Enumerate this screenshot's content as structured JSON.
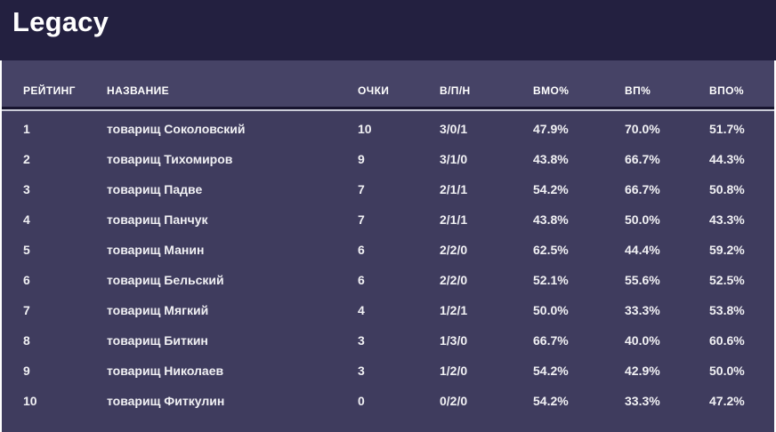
{
  "page": {
    "title": "Legacy"
  },
  "colors": {
    "title_band_bg": "#232040",
    "header_band_bg": "#464366",
    "body_bg": "#3f3c5e",
    "header_border_dark": "#17142f",
    "divider_light": "#cbccd8",
    "text": "#f1f1f4",
    "page_bg": "#ffffff"
  },
  "table": {
    "columns": [
      {
        "key": "rating",
        "label": "РЕЙТИНГ"
      },
      {
        "key": "name",
        "label": "НАЗВАНИЕ"
      },
      {
        "key": "points",
        "label": "ОЧКИ"
      },
      {
        "key": "wld",
        "label": "В/П/Н"
      },
      {
        "key": "omw_pct",
        "label": "ВМО%"
      },
      {
        "key": "gw_pct",
        "label": "ВП%"
      },
      {
        "key": "ogw_pct",
        "label": "ВПО%"
      }
    ],
    "rows": [
      {
        "rating": "1",
        "name": "товарищ Соколовский",
        "points": "10",
        "wld": "3/0/1",
        "omw_pct": "47.9%",
        "gw_pct": "70.0%",
        "ogw_pct": "51.7%"
      },
      {
        "rating": "2",
        "name": "товарищ Тихомиров",
        "points": "9",
        "wld": "3/1/0",
        "omw_pct": "43.8%",
        "gw_pct": "66.7%",
        "ogw_pct": "44.3%"
      },
      {
        "rating": "3",
        "name": "товарищ Падве",
        "points": "7",
        "wld": "2/1/1",
        "omw_pct": "54.2%",
        "gw_pct": "66.7%",
        "ogw_pct": "50.8%"
      },
      {
        "rating": "4",
        "name": "товарищ Панчук",
        "points": "7",
        "wld": "2/1/1",
        "omw_pct": "43.8%",
        "gw_pct": "50.0%",
        "ogw_pct": "43.3%"
      },
      {
        "rating": "5",
        "name": "товарищ Манин",
        "points": "6",
        "wld": "2/2/0",
        "omw_pct": "62.5%",
        "gw_pct": "44.4%",
        "ogw_pct": "59.2%"
      },
      {
        "rating": "6",
        "name": "товарищ Бельский",
        "points": "6",
        "wld": "2/2/0",
        "omw_pct": "52.1%",
        "gw_pct": "55.6%",
        "ogw_pct": "52.5%"
      },
      {
        "rating": "7",
        "name": "товарищ Мягкий",
        "points": "4",
        "wld": "1/2/1",
        "omw_pct": "50.0%",
        "gw_pct": "33.3%",
        "ogw_pct": "53.8%"
      },
      {
        "rating": "8",
        "name": "товарищ Биткин",
        "points": "3",
        "wld": "1/3/0",
        "omw_pct": "66.7%",
        "gw_pct": "40.0%",
        "ogw_pct": "60.6%"
      },
      {
        "rating": "9",
        "name": "товарищ Николаев",
        "points": "3",
        "wld": "1/2/0",
        "omw_pct": "54.2%",
        "gw_pct": "42.9%",
        "ogw_pct": "50.0%"
      },
      {
        "rating": "10",
        "name": "товарищ Фиткулин",
        "points": "0",
        "wld": "0/2/0",
        "omw_pct": "54.2%",
        "gw_pct": "33.3%",
        "ogw_pct": "47.2%"
      }
    ]
  }
}
